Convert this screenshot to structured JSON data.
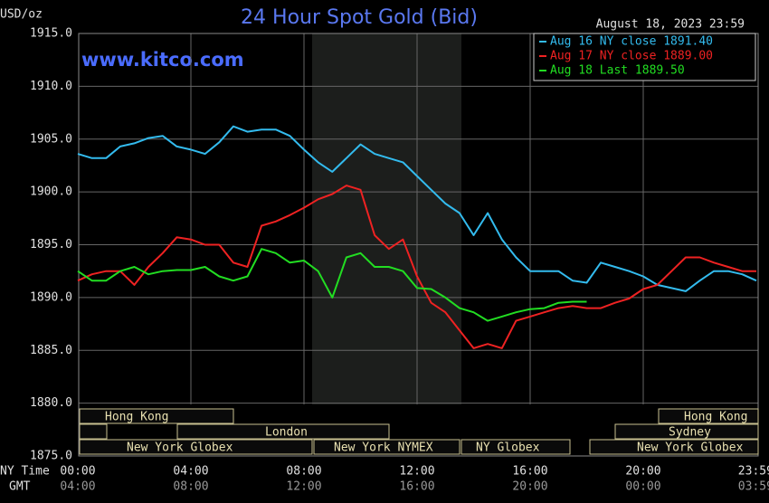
{
  "chart_data": {
    "type": "line",
    "title": "24 Hour Spot Gold (Bid)",
    "subtitle": "August 18, 2023 23:59",
    "watermark": "www.kitco.com",
    "y_label": "USD/oz",
    "x_label": "NY Time",
    "x2_label": "GMT",
    "x": [
      0,
      0.5,
      1,
      1.5,
      2,
      2.5,
      3,
      3.5,
      4,
      4.5,
      5,
      5.5,
      6,
      6.5,
      7,
      7.5,
      8,
      8.5,
      9,
      9.5,
      10,
      10.5,
      11,
      11.5,
      12,
      12.5,
      13,
      13.5,
      14,
      14.5,
      15,
      15.5,
      16,
      16.5,
      17,
      17.5,
      18,
      18.5,
      19,
      19.5,
      20,
      20.5,
      21,
      21.5,
      22,
      22.5,
      23,
      23.5,
      24
    ],
    "series": [
      {
        "name": "Aug 16 NY close 1891.40",
        "color": "#33bbee",
        "values": [
          1903.6,
          1903.2,
          1903.2,
          1904.3,
          1904.6,
          1905.1,
          1905.3,
          1904.3,
          1904.0,
          1903.6,
          1904.7,
          1906.2,
          1905.7,
          1905.9,
          1905.9,
          1905.3,
          1904.0,
          1902.8,
          1901.9,
          1903.2,
          1904.5,
          1903.6,
          1903.2,
          1902.8,
          1901.5,
          1900.2,
          1898.9,
          1898.0,
          1895.9,
          1898.0,
          1895.5,
          1893.8,
          1892.5,
          1892.5,
          1892.5,
          1891.6,
          1891.4,
          1893.3,
          1892.9,
          1892.5,
          1892.0,
          1891.2,
          1890.9,
          1890.6,
          1891.6,
          1892.5,
          1892.5,
          1892.2,
          1891.6
        ]
      },
      {
        "name": "Aug 17 NY close 1889.00",
        "color": "#ee2222",
        "values": [
          1891.6,
          1892.2,
          1892.5,
          1892.5,
          1891.2,
          1892.9,
          1894.2,
          1895.7,
          1895.5,
          1895.0,
          1895.0,
          1893.3,
          1892.9,
          1896.8,
          1897.2,
          1897.8,
          1898.5,
          1899.3,
          1899.8,
          1900.6,
          1900.2,
          1895.9,
          1894.6,
          1895.5,
          1892.0,
          1889.5,
          1888.6,
          1886.9,
          1885.2,
          1885.6,
          1885.2,
          1887.8,
          1888.2,
          1888.6,
          1889.0,
          1889.2,
          1889.0,
          1889.0,
          1889.5,
          1889.9,
          1890.8,
          1891.2,
          1892.5,
          1893.8,
          1893.8,
          1893.3,
          1892.9,
          1892.5,
          1892.5
        ]
      },
      {
        "name": "Aug 18 Last 1889.50",
        "color": "#22dd22",
        "values": [
          1892.5,
          1891.6,
          1891.6,
          1892.5,
          1892.9,
          1892.2,
          1892.5,
          1892.6,
          1892.6,
          1892.9,
          1892.0,
          1891.6,
          1892.0,
          1894.6,
          1894.2,
          1893.3,
          1893.5,
          1892.5,
          1890.0,
          1893.8,
          1894.2,
          1892.9,
          1892.9,
          1892.5,
          1890.9,
          1890.8,
          1890.0,
          1889.0,
          1888.6,
          1887.8,
          1888.2,
          1888.6,
          1888.9,
          1889.0,
          1889.5,
          1889.6,
          1889.6,
          null,
          null,
          null,
          null,
          null,
          null,
          null,
          null,
          null,
          null,
          null,
          null
        ]
      }
    ],
    "xlim": [
      0,
      24
    ],
    "xticks": [
      {
        "value": 0,
        "label": "00:00"
      },
      {
        "value": 4,
        "label": "04:00"
      },
      {
        "value": 8,
        "label": "08:00"
      },
      {
        "value": 12,
        "label": "12:00"
      },
      {
        "value": 16,
        "label": "16:00"
      },
      {
        "value": 20,
        "label": "20:00"
      },
      {
        "value": 23.98,
        "label": "23:59"
      }
    ],
    "x2ticks": [
      {
        "value": 0,
        "label": "04:00"
      },
      {
        "value": 4,
        "label": "08:00"
      },
      {
        "value": 8,
        "label": "12:00"
      },
      {
        "value": 12,
        "label": "16:00"
      },
      {
        "value": 16,
        "label": "20:00"
      },
      {
        "value": 20,
        "label": "00:00"
      },
      {
        "value": 23.98,
        "label": "03:59"
      }
    ],
    "ylim": [
      1875,
      1915
    ],
    "yticks": [
      {
        "value": 1875,
        "label": "1875.0"
      },
      {
        "value": 1880,
        "label": "1880.0"
      },
      {
        "value": 1885,
        "label": "1885.0"
      },
      {
        "value": 1890,
        "label": "1890.0"
      },
      {
        "value": 1895,
        "label": "1895.0"
      },
      {
        "value": 1900,
        "label": "1900.0"
      },
      {
        "value": 1905,
        "label": "1905.0"
      },
      {
        "value": 1910,
        "label": "1910.0"
      },
      {
        "value": 1915,
        "label": "1915.0"
      }
    ],
    "grid": true,
    "legend": "top-right",
    "sessions": [
      "Hong Kong",
      "London",
      "New York Globex",
      "New York NYMEX",
      "NY Globex",
      "Hong Kong",
      "Sydney",
      "New York Globex"
    ]
  }
}
